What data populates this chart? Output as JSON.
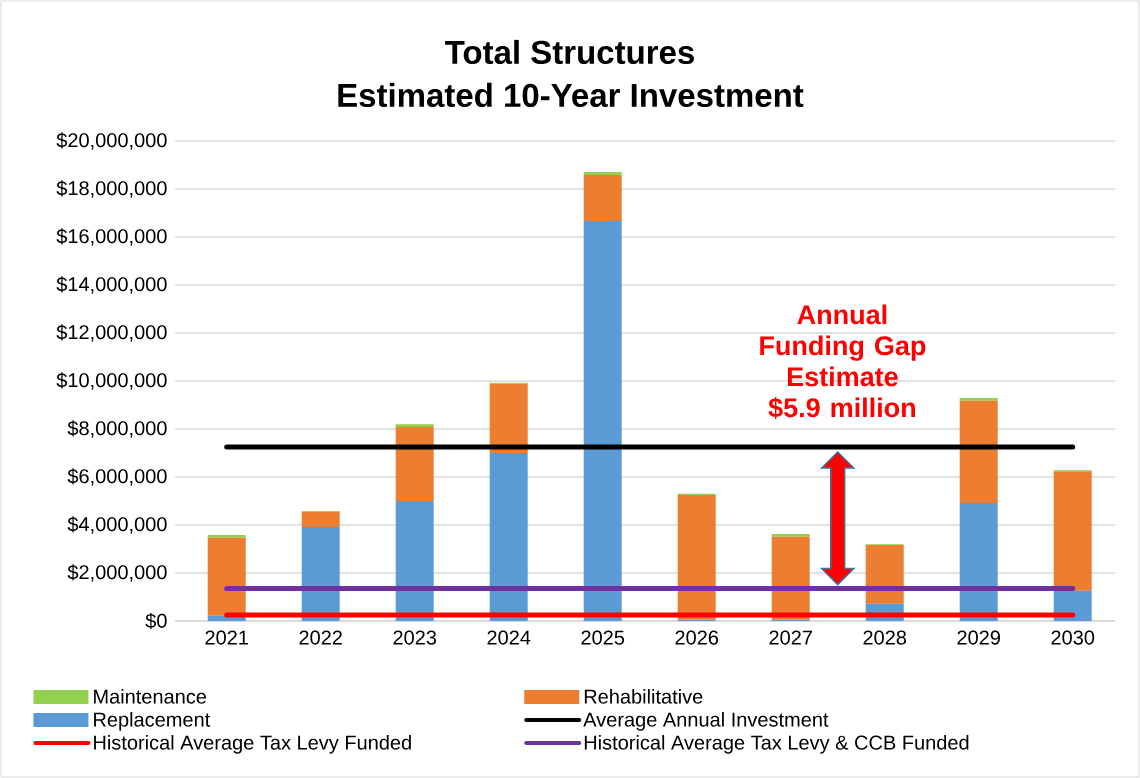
{
  "chart_data": {
    "type": "bar",
    "title": "Total Structures",
    "subtitle": "Estimated 10-Year Investment",
    "categories": [
      "2021",
      "2022",
      "2023",
      "2024",
      "2025",
      "2026",
      "2027",
      "2028",
      "2029",
      "2030"
    ],
    "stacked": true,
    "series": [
      {
        "name": "Replacement",
        "color": "#5b9bd5",
        "values": [
          220000,
          3920000,
          5000000,
          7000000,
          16670000,
          50000,
          50000,
          720000,
          4920000,
          1260000
        ]
      },
      {
        "name": "Rehabilitative",
        "color": "#ed7d31",
        "values": [
          3250000,
          630000,
          3080000,
          2890000,
          1910000,
          5200000,
          3460000,
          2450000,
          4260000,
          4980000
        ]
      },
      {
        "name": "Maintenance",
        "color": "#92d050",
        "values": [
          110000,
          30000,
          120000,
          40000,
          130000,
          50000,
          110000,
          30000,
          110000,
          40000
        ]
      },
      {
        "name": "Average Annual Investment",
        "type": "line",
        "color": "#000000",
        "values": [
          7250000,
          7250000,
          7250000,
          7250000,
          7250000,
          7250000,
          7250000,
          7250000,
          7250000,
          7250000
        ]
      },
      {
        "name": "Historical Average Tax Levy Funded",
        "type": "line",
        "color": "#ff0000",
        "values": [
          250000,
          250000,
          250000,
          250000,
          250000,
          250000,
          250000,
          250000,
          250000,
          250000
        ]
      },
      {
        "name": "Historical Average Tax Levy & CCB Funded",
        "type": "line",
        "color": "#7030a0",
        "values": [
          1350000,
          1350000,
          1350000,
          1350000,
          1350000,
          1350000,
          1350000,
          1350000,
          1350000,
          1350000
        ]
      }
    ],
    "ylim": [
      0,
      20000000
    ],
    "yticks": [
      {
        "value": 0,
        "label": "$0"
      },
      {
        "value": 2000000,
        "label": "$2,000,000"
      },
      {
        "value": 4000000,
        "label": "$4,000,000"
      },
      {
        "value": 6000000,
        "label": "$6,000,000"
      },
      {
        "value": 8000000,
        "label": "$8,000,000"
      },
      {
        "value": 10000000,
        "label": "$10,000,000"
      },
      {
        "value": 12000000,
        "label": "$12,000,000"
      },
      {
        "value": 14000000,
        "label": "$14,000,000"
      },
      {
        "value": 16000000,
        "label": "$16,000,000"
      },
      {
        "value": 18000000,
        "label": "$18,000,000"
      },
      {
        "value": 20000000,
        "label": "$20,000,000"
      }
    ],
    "grid": "y",
    "legend": "bottom",
    "annotations": [
      "Annual Funding Gap Estimate $5.9 million"
    ]
  }
}
